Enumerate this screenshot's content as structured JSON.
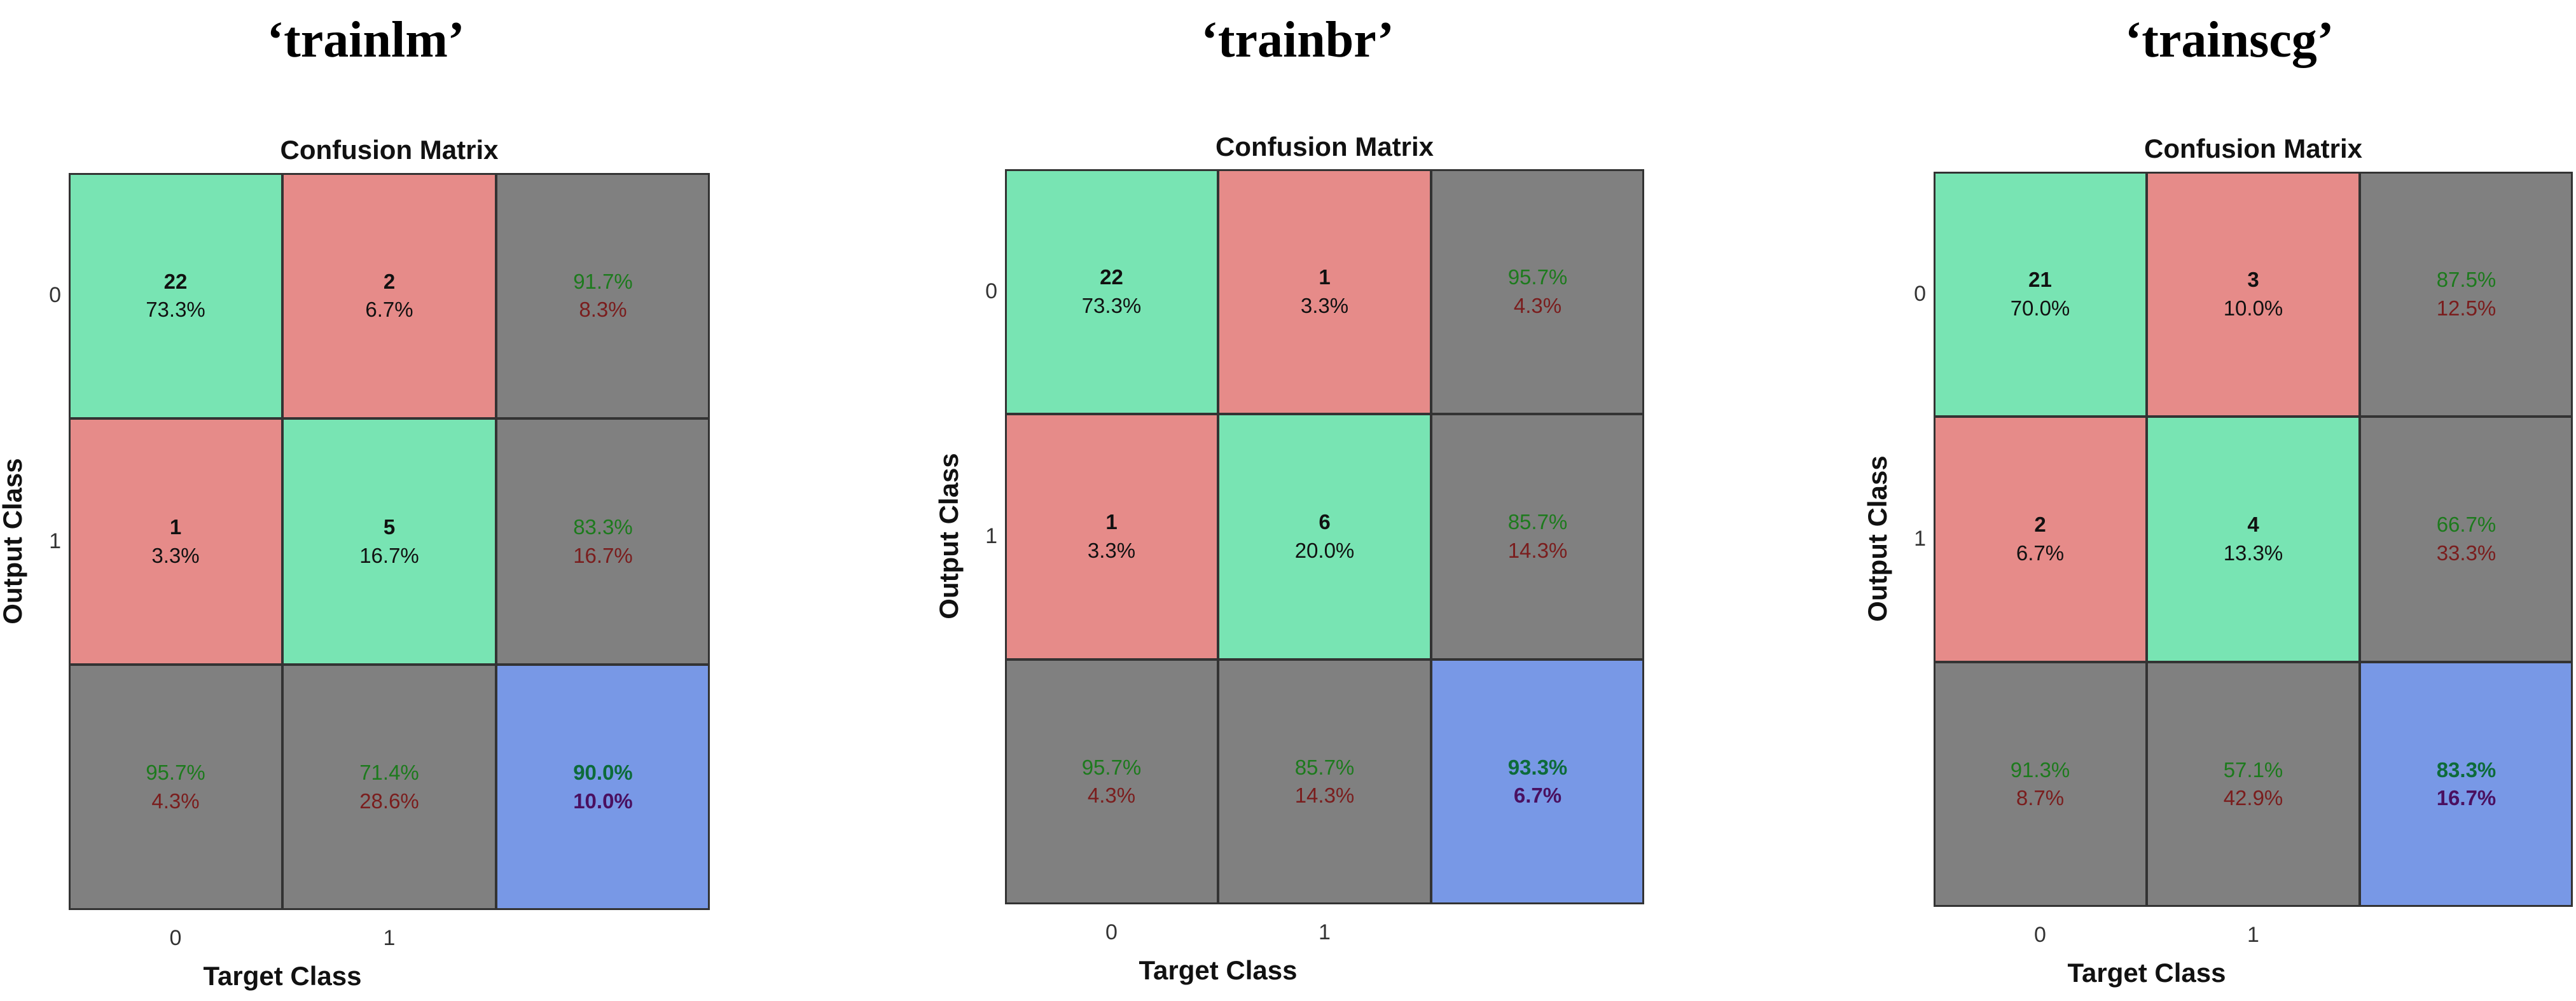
{
  "colors": {
    "correct": "#78e4b3",
    "incorrect": "#e68b89",
    "summary": "#808080",
    "overall": "#7898e6"
  },
  "chart_data": [
    {
      "type": "heatmap",
      "heading": "‘trainlm’",
      "title": "Confusion Matrix",
      "xlabel": "Target Class",
      "ylabel": "Output Class",
      "xticks": [
        "0",
        "1"
      ],
      "yticks": [
        "0",
        "1"
      ],
      "cells": [
        [
          {
            "count": "22",
            "pct": "73.3%"
          },
          {
            "count": "2",
            "pct": "6.7%"
          },
          {
            "good": "91.7%",
            "bad": "8.3%"
          }
        ],
        [
          {
            "count": "1",
            "pct": "3.3%"
          },
          {
            "count": "5",
            "pct": "16.7%"
          },
          {
            "good": "83.3%",
            "bad": "16.7%"
          }
        ],
        [
          {
            "good": "95.7%",
            "bad": "4.3%"
          },
          {
            "good": "71.4%",
            "bad": "28.6%"
          },
          {
            "good": "90.0%",
            "bad": "10.0%"
          }
        ]
      ]
    },
    {
      "type": "heatmap",
      "heading": "‘trainbr’",
      "title": "Confusion Matrix",
      "xlabel": "Target Class",
      "ylabel": "Output Class",
      "xticks": [
        "0",
        "1"
      ],
      "yticks": [
        "0",
        "1"
      ],
      "cells": [
        [
          {
            "count": "22",
            "pct": "73.3%"
          },
          {
            "count": "1",
            "pct": "3.3%"
          },
          {
            "good": "95.7%",
            "bad": "4.3%"
          }
        ],
        [
          {
            "count": "1",
            "pct": "3.3%"
          },
          {
            "count": "6",
            "pct": "20.0%"
          },
          {
            "good": "85.7%",
            "bad": "14.3%"
          }
        ],
        [
          {
            "good": "95.7%",
            "bad": "4.3%"
          },
          {
            "good": "85.7%",
            "bad": "14.3%"
          },
          {
            "good": "93.3%",
            "bad": "6.7%"
          }
        ]
      ]
    },
    {
      "type": "heatmap",
      "heading": "‘trainscg’",
      "title": "Confusion Matrix",
      "xlabel": "Target Class",
      "ylabel": "Output Class",
      "xticks": [
        "0",
        "1"
      ],
      "yticks": [
        "0",
        "1"
      ],
      "cells": [
        [
          {
            "count": "21",
            "pct": "70.0%"
          },
          {
            "count": "3",
            "pct": "10.0%"
          },
          {
            "good": "87.5%",
            "bad": "12.5%"
          }
        ],
        [
          {
            "count": "2",
            "pct": "6.7%"
          },
          {
            "count": "4",
            "pct": "13.3%"
          },
          {
            "good": "66.7%",
            "bad": "33.3%"
          }
        ],
        [
          {
            "good": "91.3%",
            "bad": "8.7%"
          },
          {
            "good": "57.1%",
            "bad": "42.9%"
          },
          {
            "good": "83.3%",
            "bad": "16.7%"
          }
        ]
      ]
    }
  ]
}
